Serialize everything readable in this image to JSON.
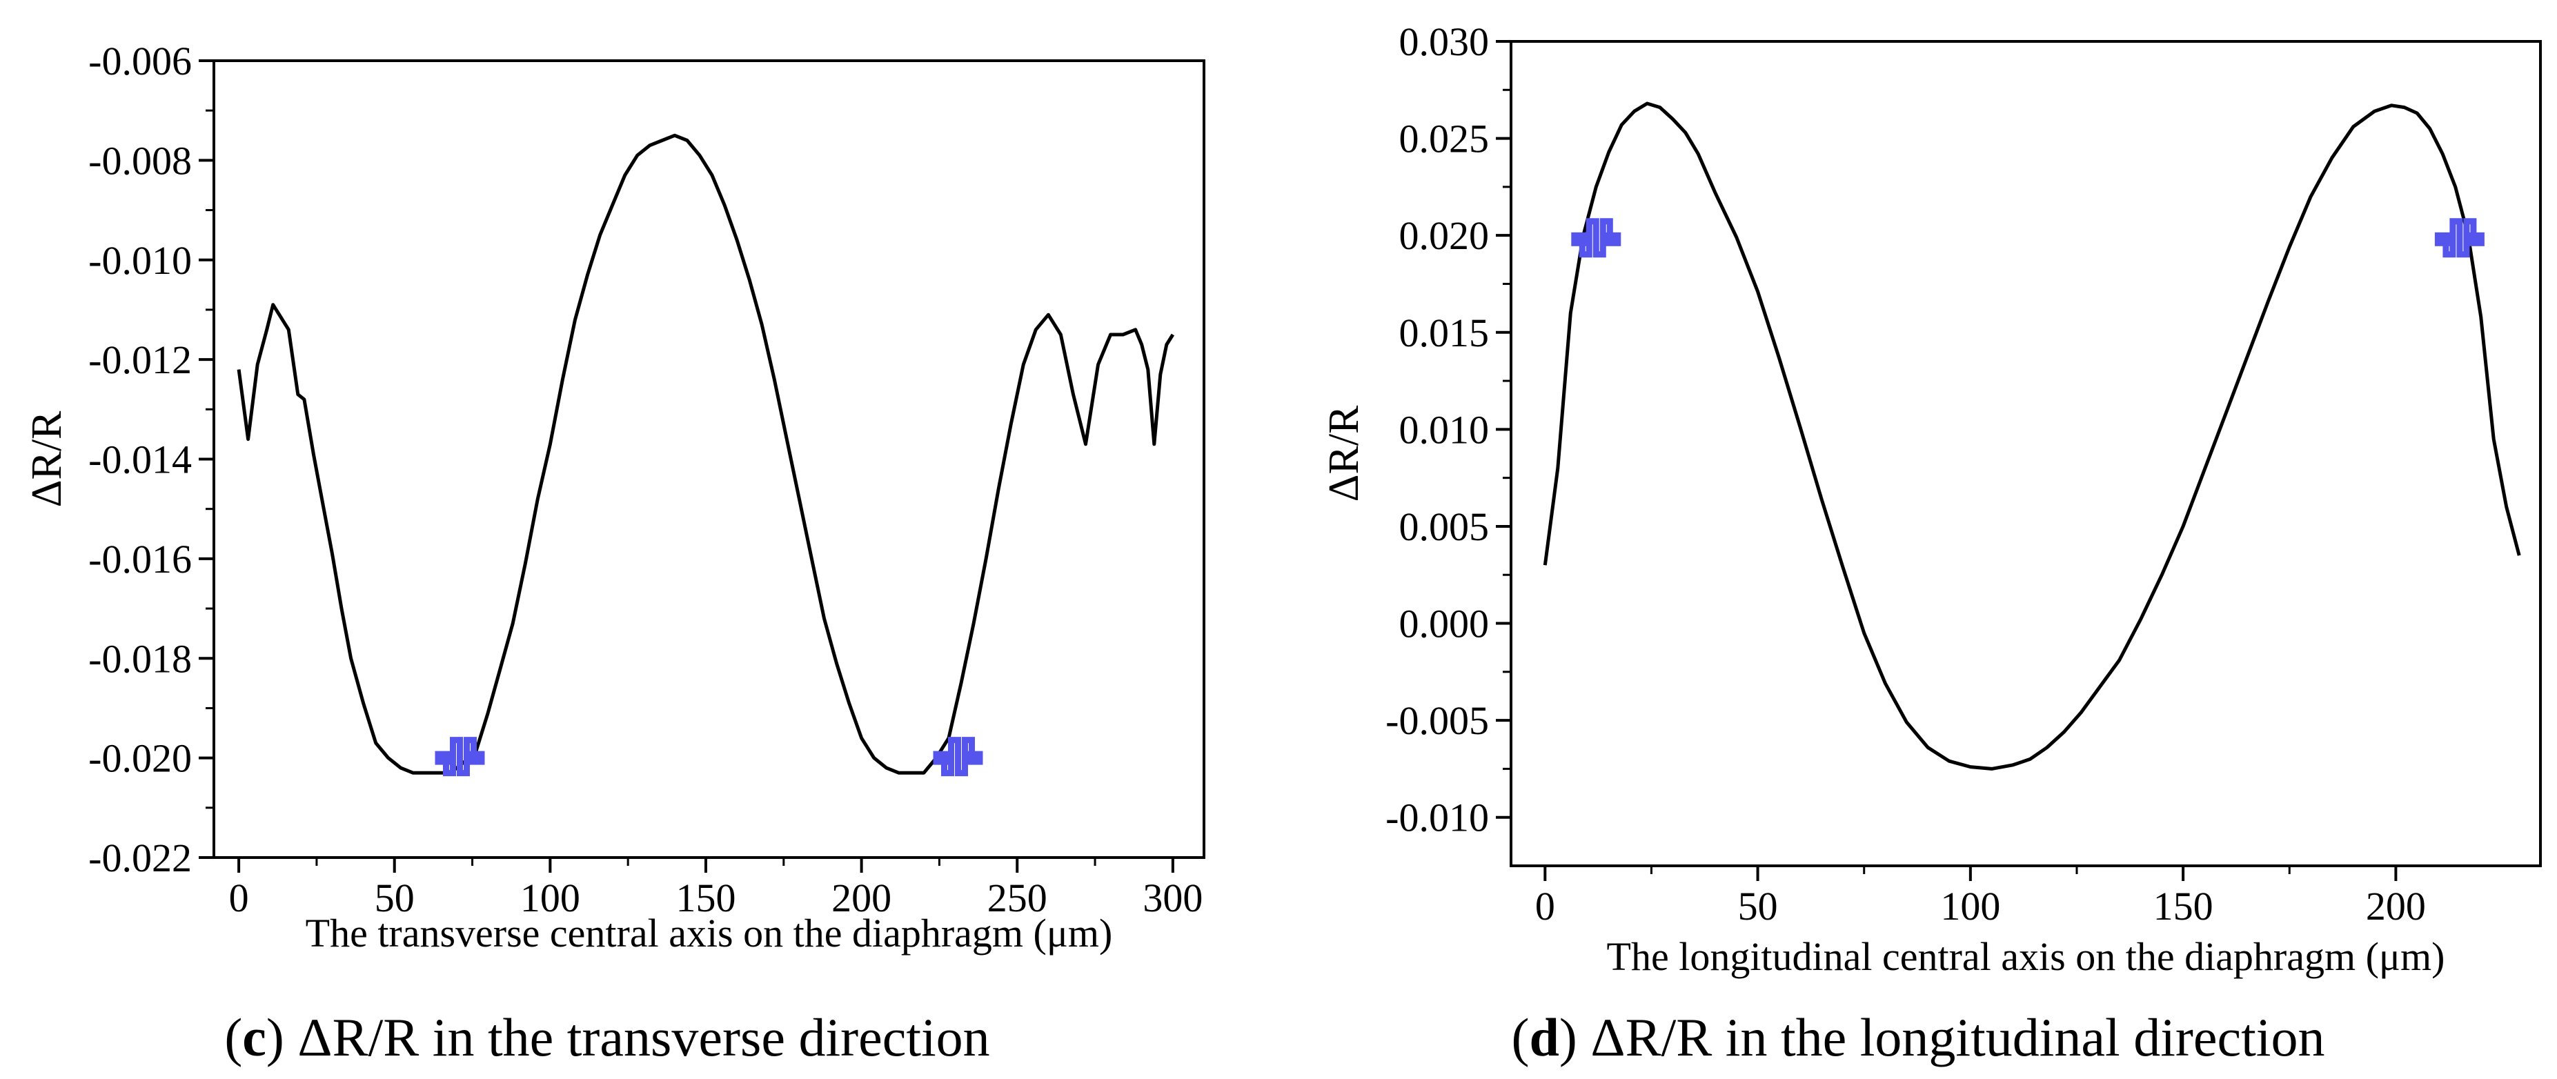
{
  "chart_data": [
    {
      "type": "line",
      "panel_letter": "c",
      "caption": "ΔR/R in the transverse direction",
      "xlabel": "The transverse central axis on the diaphragm (μm)",
      "ylabel": "ΔR/R",
      "xlim": [
        -8,
        310
      ],
      "ylim": [
        -0.022,
        -0.006
      ],
      "xticks": [
        0,
        50,
        100,
        150,
        200,
        250,
        300
      ],
      "xtick_labels": [
        "0",
        "50",
        "100",
        "150",
        "200",
        "250",
        "300"
      ],
      "yticks": [
        -0.022,
        -0.02,
        -0.018,
        -0.016,
        -0.014,
        -0.012,
        -0.01,
        -0.008,
        -0.006
      ],
      "ytick_labels": [
        "-0.022",
        "-0.020",
        "-0.018",
        "-0.016",
        "-0.014",
        "-0.012",
        "-0.010",
        "-0.008",
        "-0.006"
      ],
      "grid": false,
      "series": [
        {
          "name": "ΔR/R",
          "color": "#000000",
          "x": [
            0,
            3,
            6,
            9,
            11,
            13,
            16,
            19,
            21,
            24,
            27,
            30,
            33,
            36,
            40,
            44,
            48,
            52,
            56,
            60,
            64,
            68,
            72,
            76,
            80,
            84,
            88,
            92,
            96,
            100,
            104,
            108,
            112,
            116,
            120,
            124,
            128,
            132,
            136,
            140,
            144,
            148,
            152,
            156,
            160,
            164,
            168,
            172,
            176,
            180,
            184,
            188,
            192,
            196,
            200,
            204,
            208,
            212,
            216,
            220,
            224,
            228,
            232,
            236,
            240,
            244,
            248,
            252,
            256,
            260,
            264,
            268,
            272,
            276,
            280,
            284,
            288,
            290,
            292,
            294,
            296,
            298,
            300
          ],
          "y": [
            -0.0122,
            -0.0136,
            -0.0121,
            -0.0114,
            -0.0109,
            -0.0111,
            -0.0114,
            -0.0127,
            -0.0128,
            -0.0139,
            -0.0149,
            -0.0159,
            -0.017,
            -0.018,
            -0.0189,
            -0.0197,
            -0.02,
            -0.0202,
            -0.0203,
            -0.0203,
            -0.0203,
            -0.0203,
            -0.0201,
            -0.0199,
            -0.0191,
            -0.0182,
            -0.0173,
            -0.0161,
            -0.0148,
            -0.0137,
            -0.0124,
            -0.0112,
            -0.0103,
            -0.0095,
            -0.0089,
            -0.0083,
            -0.0079,
            -0.0077,
            -0.0076,
            -0.0075,
            -0.0076,
            -0.0079,
            -0.0083,
            -0.0089,
            -0.0096,
            -0.0104,
            -0.0113,
            -0.0124,
            -0.0136,
            -0.0148,
            -0.016,
            -0.0172,
            -0.0181,
            -0.0189,
            -0.0196,
            -0.02,
            -0.0202,
            -0.0203,
            -0.0203,
            -0.0203,
            -0.02,
            -0.0196,
            -0.0185,
            -0.0173,
            -0.016,
            -0.0146,
            -0.0133,
            -0.0121,
            -0.0114,
            -0.0111,
            -0.0115,
            -0.0127,
            -0.0137,
            -0.0121,
            -0.0115,
            -0.0115,
            -0.0114,
            -0.0117,
            -0.0122,
            -0.0137,
            -0.0123,
            -0.0117,
            -0.0115
          ]
        }
      ],
      "annotations": [
        {
          "type": "piezoresistor-icon",
          "name": "transverse-left-piezoresistor",
          "x": 71,
          "y": -0.02,
          "color": "#5555ee"
        },
        {
          "type": "piezoresistor-icon",
          "name": "transverse-right-piezoresistor",
          "x": 231,
          "y": -0.02,
          "color": "#5555ee"
        }
      ]
    },
    {
      "type": "line",
      "panel_letter": "d",
      "caption": "ΔR/R in the longitudinal direction",
      "xlabel": "The longitudinal central axis on the diaphragm (μm)",
      "ylabel": "ΔR/R",
      "xlim": [
        -8,
        234
      ],
      "ylim": [
        -0.0125,
        0.03
      ],
      "xticks": [
        0,
        50,
        100,
        150,
        200
      ],
      "xtick_labels": [
        "0",
        "50",
        "100",
        "150",
        "200"
      ],
      "yticks": [
        -0.01,
        -0.005,
        0.0,
        0.005,
        0.01,
        0.015,
        0.02,
        0.025,
        0.03
      ],
      "ytick_labels": [
        "-0.010",
        "-0.005",
        "0.000",
        "0.005",
        "0.010",
        "0.015",
        "0.020",
        "0.025",
        "0.030"
      ],
      "grid": false,
      "series": [
        {
          "name": "ΔR/R",
          "color": "#000000",
          "x": [
            0,
            3,
            6,
            9,
            12,
            15,
            18,
            21,
            24,
            27,
            30,
            33,
            36,
            40,
            45,
            50,
            55,
            60,
            65,
            70,
            75,
            80,
            85,
            90,
            95,
            100,
            105,
            110,
            114,
            118,
            122,
            126,
            130,
            135,
            140,
            145,
            150,
            155,
            160,
            165,
            170,
            175,
            180,
            185,
            190,
            195,
            199,
            202,
            205,
            208,
            211,
            214,
            217,
            220,
            223,
            226,
            229
          ],
          "y": [
            0.003,
            0.008,
            0.016,
            0.02,
            0.0225,
            0.0243,
            0.0257,
            0.0264,
            0.0268,
            0.0266,
            0.026,
            0.0253,
            0.0242,
            0.0222,
            0.0199,
            0.0171,
            0.0137,
            0.0101,
            0.0064,
            0.0029,
            -0.0005,
            -0.0031,
            -0.0051,
            -0.0064,
            -0.0071,
            -0.0074,
            -0.0075,
            -0.0073,
            -0.007,
            -0.0064,
            -0.0056,
            -0.0046,
            -0.0034,
            -0.0019,
            0.0002,
            0.0025,
            0.005,
            0.0079,
            0.0108,
            0.0137,
            0.0166,
            0.0194,
            0.022,
            0.024,
            0.0256,
            0.0264,
            0.0267,
            0.0266,
            0.0263,
            0.0255,
            0.0242,
            0.0225,
            0.02,
            0.0158,
            0.0095,
            0.006,
            0.0035
          ]
        }
      ],
      "annotations": [
        {
          "type": "piezoresistor-icon",
          "name": "longitudinal-left-piezoresistor",
          "x": 12,
          "y": 0.0198,
          "color": "#5555ee"
        },
        {
          "type": "piezoresistor-icon",
          "name": "longitudinal-right-piezoresistor",
          "x": 215,
          "y": 0.0198,
          "color": "#5555ee"
        }
      ]
    }
  ]
}
